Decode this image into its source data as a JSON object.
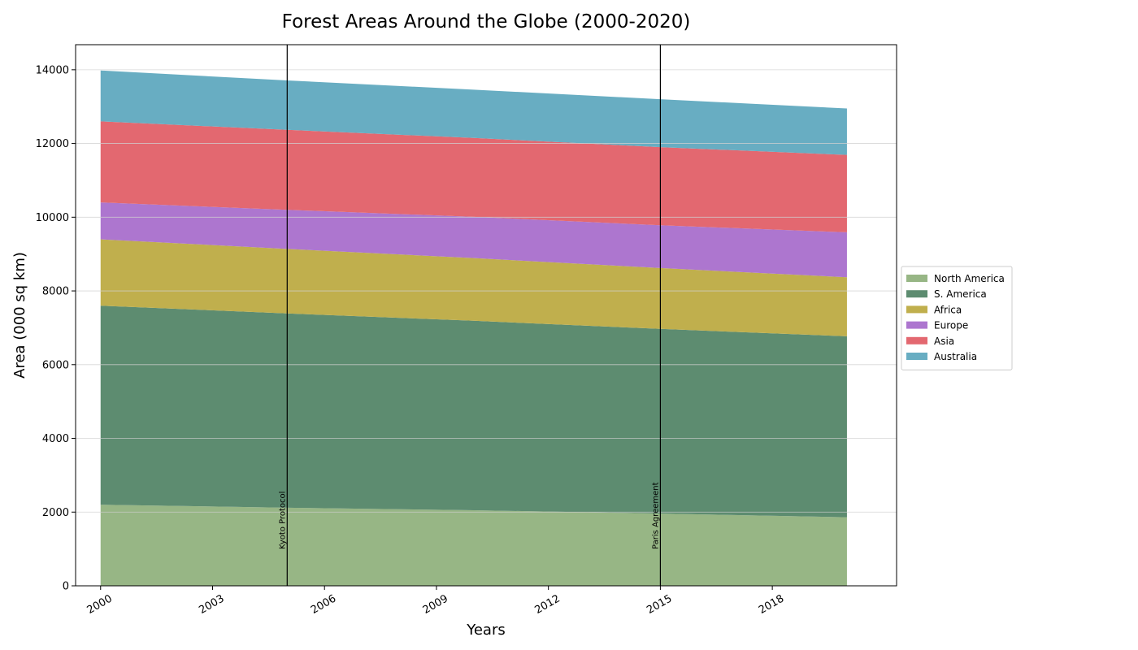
{
  "chart_data": {
    "type": "area",
    "stacked": true,
    "title": "Forest Areas Around the Globe (2000-2020)",
    "xlabel": "Years",
    "ylabel": "Area (000 sq km)",
    "x": [
      2000,
      2005,
      2010,
      2015,
      2020
    ],
    "x_ticks": [
      "2000",
      "2003",
      "2006",
      "2009",
      "2012",
      "2015",
      "2018"
    ],
    "xlim": [
      1999.33,
      2021.33
    ],
    "y_ticks": [
      "0",
      "2000",
      "4000",
      "6000",
      "8000",
      "10000",
      "12000",
      "14000"
    ],
    "ylim": [
      0,
      14680
    ],
    "grid": "y",
    "legend_position": "center-right",
    "series": [
      {
        "name": "North America",
        "color": "#97b685",
        "values": [
          2200,
          2120,
          2050,
          1960,
          1860
        ]
      },
      {
        "name": "S. America",
        "color": "#5d8c70",
        "values": [
          5400,
          5270,
          5140,
          5010,
          4910
        ]
      },
      {
        "name": "Africa",
        "color": "#c0af4d",
        "values": [
          1800,
          1750,
          1700,
          1650,
          1600
        ]
      },
      {
        "name": "Europe",
        "color": "#ad76cf",
        "values": [
          1000,
          1060,
          1120,
          1160,
          1220
        ]
      },
      {
        "name": "Asia",
        "color": "#e36870",
        "values": [
          2200,
          2170,
          2140,
          2120,
          2100
        ]
      },
      {
        "name": "Australia",
        "color": "#68adc2",
        "values": [
          1380,
          1340,
          1310,
          1300,
          1260
        ]
      }
    ],
    "annotations": [
      {
        "x": 2005,
        "label": "Kyoto Protocol"
      },
      {
        "x": 2015,
        "label": "Paris Agreement"
      }
    ]
  }
}
